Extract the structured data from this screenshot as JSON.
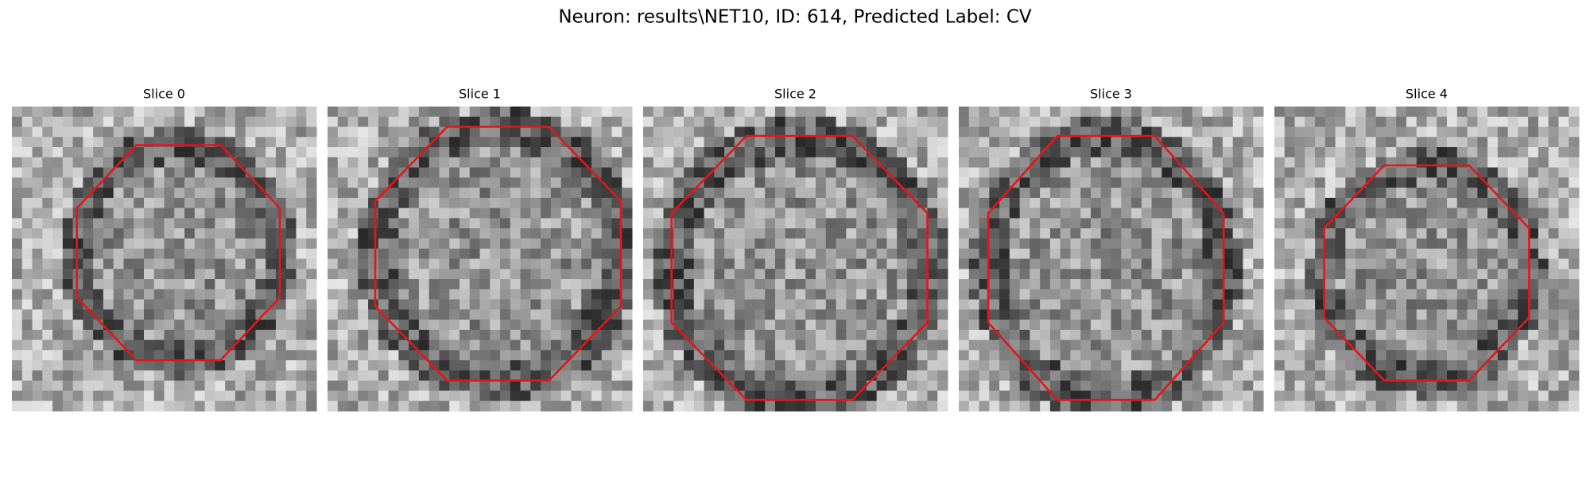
{
  "header": {
    "title": "Neuron: results\\NET10, ID: 614, Predicted Label: CV"
  },
  "panels": [
    {
      "title": "Slice 0"
    },
    {
      "title": "Slice 1"
    },
    {
      "title": "Slice 2"
    },
    {
      "title": "Slice 3"
    },
    {
      "title": "Slice 4"
    }
  ]
}
